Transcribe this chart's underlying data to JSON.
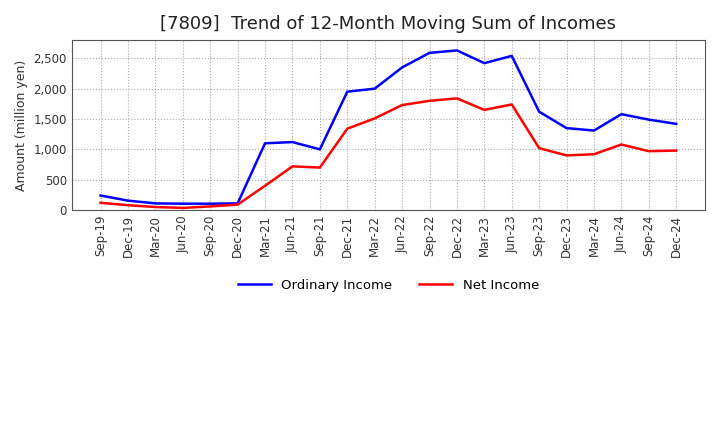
{
  "title": "[7809]  Trend of 12-Month Moving Sum of Incomes",
  "ylabel": "Amount (million yen)",
  "ylim": [
    0,
    2800
  ],
  "yticks": [
    0,
    500,
    1000,
    1500,
    2000,
    2500
  ],
  "x_labels": [
    "Sep-19",
    "Dec-19",
    "Mar-20",
    "Jun-20",
    "Sep-20",
    "Dec-20",
    "Mar-21",
    "Jun-21",
    "Sep-21",
    "Dec-21",
    "Mar-22",
    "Jun-22",
    "Sep-22",
    "Dec-22",
    "Mar-23",
    "Jun-23",
    "Sep-23",
    "Dec-23",
    "Mar-24",
    "Jun-24",
    "Sep-24",
    "Dec-24"
  ],
  "ordinary_income": [
    240,
    155,
    110,
    105,
    105,
    110,
    1100,
    1120,
    1000,
    1950,
    2000,
    2350,
    2590,
    2630,
    2420,
    2540,
    1620,
    1350,
    1310,
    1580,
    1490,
    1420
  ],
  "net_income": [
    120,
    80,
    50,
    35,
    60,
    90,
    400,
    720,
    700,
    1340,
    1510,
    1730,
    1800,
    1840,
    1650,
    1740,
    1020,
    900,
    920,
    1080,
    970,
    980
  ],
  "ordinary_color": "#0000ff",
  "net_color": "#ff0000",
  "line_width": 1.8,
  "bg_color": "#ffffff",
  "grid_color": "#aaaaaa",
  "title_fontsize": 13,
  "label_fontsize": 9,
  "tick_fontsize": 8.5
}
